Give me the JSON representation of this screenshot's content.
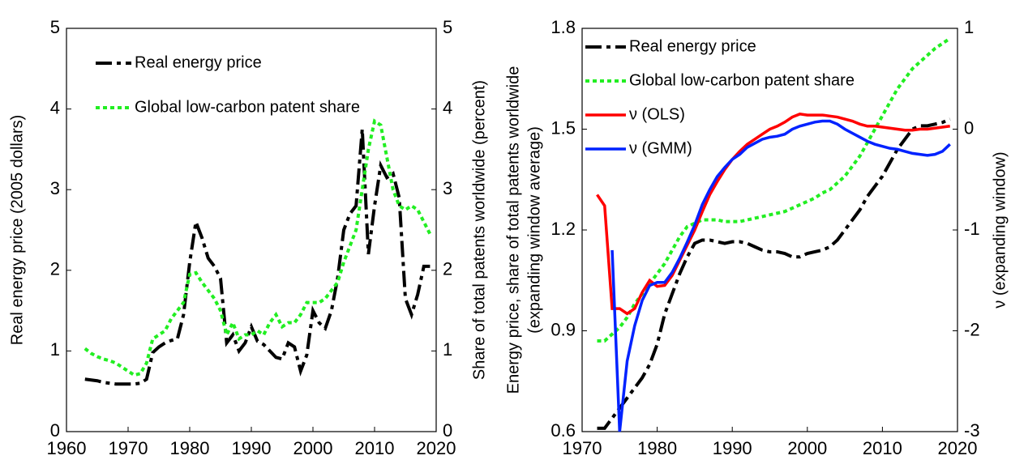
{
  "chart_data": [
    {
      "type": "line",
      "ylabel": "Real energy price (2005 dollars)",
      "y2label": "Share of total patents worldwide (percent)",
      "legend": "upper left",
      "xlim": [
        1960,
        2020
      ],
      "xticks": [
        1960,
        1970,
        1980,
        1990,
        2000,
        2010,
        2020
      ],
      "ylim": [
        0,
        5
      ],
      "yticks": [
        0,
        1,
        2,
        3,
        4,
        5
      ],
      "y2lim": [
        0,
        5
      ],
      "y2ticks": [
        0,
        1,
        2,
        3,
        4,
        5
      ],
      "x": [
        1963,
        1964,
        1965,
        1966,
        1967,
        1968,
        1969,
        1970,
        1971,
        1972,
        1973,
        1974,
        1975,
        1976,
        1977,
        1978,
        1979,
        1980,
        1981,
        1982,
        1983,
        1984,
        1985,
        1986,
        1987,
        1988,
        1989,
        1990,
        1991,
        1992,
        1993,
        1994,
        1995,
        1996,
        1997,
        1998,
        1999,
        2000,
        2001,
        2002,
        2003,
        2004,
        2005,
        2006,
        2007,
        2008,
        2009,
        2010,
        2011,
        2012,
        2013,
        2014,
        2015,
        2016,
        2017,
        2018,
        2019
      ],
      "series": [
        {
          "name": "Real energy price",
          "color": "#000000",
          "style": "dashdot",
          "values": [
            0.65,
            0.64,
            0.63,
            0.61,
            0.6,
            0.59,
            0.59,
            0.59,
            0.59,
            0.6,
            0.65,
            0.98,
            1.05,
            1.1,
            1.13,
            1.15,
            1.45,
            2.1,
            2.6,
            2.4,
            2.15,
            2.05,
            1.9,
            1.1,
            1.2,
            1.0,
            1.1,
            1.3,
            1.12,
            1.08,
            1.0,
            0.92,
            0.9,
            1.1,
            1.05,
            0.75,
            0.95,
            1.5,
            1.35,
            1.28,
            1.5,
            1.9,
            2.5,
            2.7,
            2.8,
            3.75,
            2.2,
            2.8,
            3.3,
            3.15,
            3.2,
            2.9,
            1.65,
            1.45,
            1.7,
            2.05,
            2.05
          ]
        },
        {
          "name": "Global low-carbon patent share",
          "color": "#22ee22",
          "style": "dotted",
          "axis": "y2",
          "values": [
            1.03,
            0.97,
            0.93,
            0.9,
            0.88,
            0.85,
            0.8,
            0.75,
            0.7,
            0.72,
            0.85,
            1.15,
            1.2,
            1.25,
            1.4,
            1.5,
            1.6,
            1.95,
            1.97,
            1.85,
            1.75,
            1.65,
            1.5,
            1.2,
            1.35,
            1.15,
            1.2,
            1.2,
            1.25,
            1.2,
            1.35,
            1.45,
            1.3,
            1.35,
            1.35,
            1.45,
            1.6,
            1.6,
            1.6,
            1.65,
            1.75,
            1.85,
            2.1,
            2.3,
            2.5,
            3.0,
            3.5,
            3.85,
            3.8,
            3.4,
            3.0,
            2.8,
            2.75,
            2.8,
            2.75,
            2.6,
            2.45
          ]
        }
      ]
    },
    {
      "type": "line",
      "ylabel": [
        "Energy price, share of total patents worldwide",
        "(expanding window average)"
      ],
      "y2label": "ν (expanding window)",
      "legend": "upper left",
      "xlim": [
        1970,
        2020
      ],
      "xticks": [
        1970,
        1980,
        1990,
        2000,
        2010,
        2020
      ],
      "ylim": [
        0.6,
        1.8
      ],
      "yticks": [
        0.6,
        0.9,
        1.2,
        1.5,
        1.8
      ],
      "y2lim": [
        -3,
        1
      ],
      "y2ticks": [
        -3,
        -2,
        -1,
        0,
        1
      ],
      "x": [
        1972,
        1973,
        1974,
        1975,
        1976,
        1977,
        1978,
        1979,
        1980,
        1981,
        1982,
        1983,
        1984,
        1985,
        1986,
        1987,
        1988,
        1989,
        1990,
        1991,
        1992,
        1993,
        1994,
        1995,
        1996,
        1997,
        1998,
        1999,
        2000,
        2001,
        2002,
        2003,
        2004,
        2005,
        2006,
        2007,
        2008,
        2009,
        2010,
        2011,
        2012,
        2013,
        2014,
        2015,
        2016,
        2017,
        2018,
        2019
      ],
      "series": [
        {
          "name": "Real energy price",
          "color": "#000000",
          "style": "dashdot",
          "values": [
            0.61,
            0.61,
            0.64,
            0.67,
            0.7,
            0.73,
            0.76,
            0.8,
            0.86,
            0.95,
            1.01,
            1.07,
            1.12,
            1.16,
            1.17,
            1.17,
            1.165,
            1.16,
            1.165,
            1.165,
            1.16,
            1.15,
            1.14,
            1.135,
            1.135,
            1.13,
            1.12,
            1.12,
            1.13,
            1.135,
            1.14,
            1.15,
            1.17,
            1.2,
            1.23,
            1.26,
            1.3,
            1.33,
            1.36,
            1.4,
            1.44,
            1.47,
            1.5,
            1.51,
            1.51,
            1.515,
            1.52,
            1.53
          ]
        },
        {
          "name": "Global low-carbon patent share",
          "color": "#22ee22",
          "style": "dotted",
          "values": [
            0.87,
            0.87,
            0.89,
            0.91,
            0.94,
            0.98,
            1.01,
            1.04,
            1.07,
            1.1,
            1.14,
            1.18,
            1.21,
            1.22,
            1.23,
            1.23,
            1.23,
            1.225,
            1.225,
            1.225,
            1.23,
            1.235,
            1.24,
            1.245,
            1.25,
            1.255,
            1.265,
            1.275,
            1.285,
            1.295,
            1.31,
            1.32,
            1.34,
            1.36,
            1.39,
            1.42,
            1.46,
            1.5,
            1.54,
            1.58,
            1.62,
            1.65,
            1.68,
            1.7,
            1.72,
            1.74,
            1.755,
            1.77
          ]
        },
        {
          "name": "ν (OLS)",
          "color": "#ff0000",
          "style": "solid",
          "axis": "y2",
          "values": [
            -0.65,
            -0.76,
            -1.78,
            -1.78,
            -1.83,
            -1.78,
            -1.62,
            -1.5,
            -1.56,
            -1.55,
            -1.45,
            -1.3,
            -1.15,
            -1.0,
            -0.82,
            -0.65,
            -0.52,
            -0.4,
            -0.3,
            -0.22,
            -0.15,
            -0.1,
            -0.05,
            0.0,
            0.03,
            0.07,
            0.12,
            0.15,
            0.14,
            0.14,
            0.14,
            0.13,
            0.12,
            0.1,
            0.08,
            0.05,
            0.03,
            0.03,
            0.02,
            0.01,
            0.0,
            -0.01,
            -0.01,
            0.0,
            0.0,
            0.01,
            0.02,
            0.03
          ]
        },
        {
          "name": "ν (GMM)",
          "color": "#0022ff",
          "style": "solid",
          "axis": "y2",
          "values": [
            null,
            null,
            -1.2,
            -3.0,
            -2.3,
            -1.95,
            -1.7,
            -1.55,
            -1.52,
            -1.52,
            -1.42,
            -1.28,
            -1.12,
            -0.95,
            -0.75,
            -0.6,
            -0.47,
            -0.38,
            -0.3,
            -0.25,
            -0.18,
            -0.14,
            -0.1,
            -0.08,
            -0.07,
            -0.05,
            0.0,
            0.03,
            0.05,
            0.07,
            0.08,
            0.08,
            0.05,
            0.0,
            -0.04,
            -0.08,
            -0.12,
            -0.15,
            -0.17,
            -0.19,
            -0.2,
            -0.22,
            -0.24,
            -0.25,
            -0.26,
            -0.25,
            -0.22,
            -0.15
          ]
        }
      ]
    }
  ]
}
